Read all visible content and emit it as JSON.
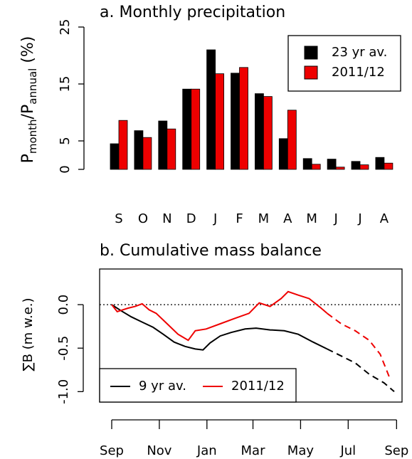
{
  "chart_data": [
    {
      "type": "bar",
      "title": "a. Monthly precipitation",
      "ylabel_parts": [
        "P",
        "month",
        "/P",
        "annual",
        " (%)"
      ],
      "categories": [
        "S",
        "O",
        "N",
        "D",
        "J",
        "F",
        "M",
        "A",
        "M",
        "J",
        "J",
        "A"
      ],
      "series": [
        {
          "name": "23 yr av.",
          "color": "#000000",
          "values": [
            4.5,
            6.8,
            8.5,
            14.1,
            21,
            16.9,
            13.3,
            5.4,
            1.9,
            1.8,
            1.4,
            2.1
          ]
        },
        {
          "name": "2011/12",
          "color": "#ee0000",
          "values": [
            8.6,
            5.6,
            7.1,
            14.1,
            16.8,
            17.9,
            12.8,
            10.4,
            0.9,
            0.4,
            0.8,
            1.1
          ]
        }
      ],
      "ylim": [
        0,
        25
      ],
      "yticks": [
        0,
        5,
        15,
        25
      ],
      "legend": "top-right"
    },
    {
      "type": "line",
      "title": "b. Cumulative mass balance",
      "ylabel": "∑B (m w.e.)",
      "xlim": [
        -15.5,
        372
      ],
      "xticks": [
        {
          "value": 0,
          "label": "Sep"
        },
        {
          "value": 61,
          "label": "Nov"
        },
        {
          "value": 122,
          "label": "Jan"
        },
        {
          "value": 181,
          "label": "Mar"
        },
        {
          "value": 242,
          "label": "May"
        },
        {
          "value": 303,
          "label": "Jul"
        },
        {
          "value": 365,
          "label": "Sep"
        }
      ],
      "ylim": [
        -1.12,
        0.41
      ],
      "yticks": [
        {
          "value": 0,
          "label": "0.0"
        },
        {
          "value": -0.5,
          "label": "-0.5"
        },
        {
          "value": -1,
          "label": "-1.0"
        }
      ],
      "hline": 0,
      "dashed_from": 276,
      "legend": "bottom-left",
      "series": [
        {
          "name": "9 yr av.",
          "color": "#000000",
          "x": [
            0,
            12,
            25,
            39,
            53,
            66,
            80,
            94,
            107,
            117,
            126,
            139,
            153,
            171,
            185,
            203,
            221,
            239,
            258,
            276,
            294,
            312,
            330,
            349,
            362
          ],
          "values": [
            0,
            -0.07,
            -0.14,
            -0.2,
            -0.26,
            -0.34,
            -0.43,
            -0.48,
            -0.51,
            -0.52,
            -0.44,
            -0.36,
            -0.32,
            -0.28,
            -0.27,
            -0.29,
            -0.3,
            -0.34,
            -0.43,
            -0.51,
            -0.59,
            -0.67,
            -0.8,
            -0.9,
            -1.0
          ]
        },
        {
          "name": "2011/12",
          "color": "#ee0000",
          "x": [
            0,
            7,
            14,
            21,
            30,
            39,
            48,
            57,
            71,
            85,
            98,
            107,
            121,
            139,
            157,
            176,
            189,
            203,
            217,
            226,
            239,
            253,
            267,
            276,
            294,
            312,
            330,
            344,
            356
          ],
          "values": [
            0,
            -0.08,
            -0.06,
            -0.04,
            -0.02,
            0.01,
            -0.06,
            -0.1,
            -0.22,
            -0.34,
            -0.41,
            -0.3,
            -0.28,
            -0.22,
            -0.16,
            -0.1,
            0.02,
            -0.02,
            0.07,
            0.15,
            0.11,
            0.07,
            -0.03,
            -0.1,
            -0.22,
            -0.3,
            -0.41,
            -0.57,
            -0.84
          ]
        }
      ]
    }
  ]
}
